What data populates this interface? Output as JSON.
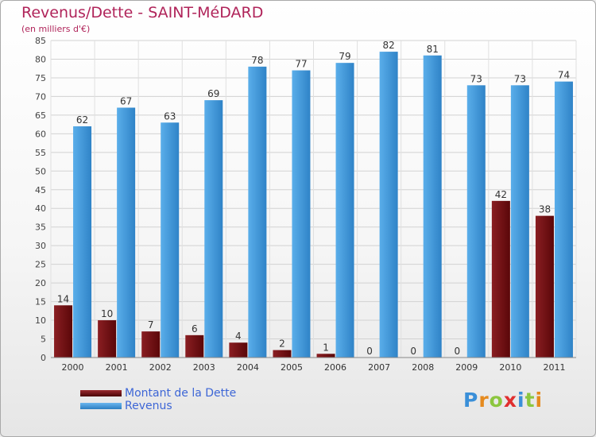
{
  "chart_data": {
    "type": "bar",
    "title": "Revenus/Dette - SAINT-MéDARD",
    "subtitle": "(en milliers d'€)",
    "categories": [
      "2000",
      "2001",
      "2002",
      "2003",
      "2004",
      "2005",
      "2006",
      "2007",
      "2008",
      "2009",
      "2010",
      "2011"
    ],
    "series": [
      {
        "name": "Montant de la Dette",
        "color": "#6b0f12",
        "values": [
          14,
          10,
          7,
          6,
          4,
          2,
          1,
          0,
          0,
          0,
          42,
          38
        ]
      },
      {
        "name": "Revenus",
        "color": "#3f9ae0",
        "values": [
          62,
          67,
          63,
          69,
          78,
          77,
          79,
          82,
          81,
          73,
          73,
          74
        ]
      }
    ],
    "ylim": [
      0,
      85
    ],
    "yticks": [
      0,
      5,
      10,
      15,
      20,
      25,
      30,
      35,
      40,
      45,
      50,
      55,
      60,
      65,
      70,
      75,
      80,
      85
    ],
    "grid": true,
    "legend": "bottom-left"
  },
  "brand": {
    "letters": [
      "P",
      "r",
      "o",
      "x",
      "i",
      "t",
      "i"
    ],
    "colors": [
      "#3a8fd8",
      "#e58a1e",
      "#8cc63f",
      "#e02f2f",
      "#3a8fd8",
      "#8cc63f",
      "#e58a1e"
    ]
  }
}
